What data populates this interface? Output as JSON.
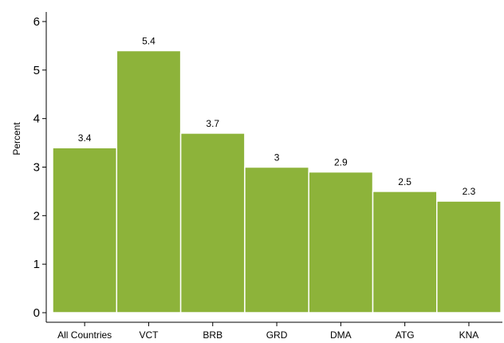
{
  "chart_data": {
    "type": "bar",
    "categories": [
      "All Countries",
      "VCT",
      "BRB",
      "GRD",
      "DMA",
      "ATG",
      "KNA"
    ],
    "values": [
      3.4,
      5.4,
      3.7,
      3,
      2.9,
      2.5,
      2.3
    ],
    "data_labels": [
      "3.4",
      "5.4",
      "3.7",
      "3",
      "2.9",
      "2.5",
      "2.3"
    ],
    "title": "",
    "xlabel": "",
    "ylabel": "Percent",
    "ylim": [
      0,
      6
    ],
    "yticks": [
      0,
      1,
      2,
      3,
      4,
      5,
      6
    ],
    "ytick_labels": [
      "0",
      "1",
      "2",
      "3",
      "4",
      "5",
      "6"
    ],
    "grid": false,
    "legend": "none",
    "bar_color": "#8db33a",
    "bar_outline_color": "#ffffff"
  }
}
